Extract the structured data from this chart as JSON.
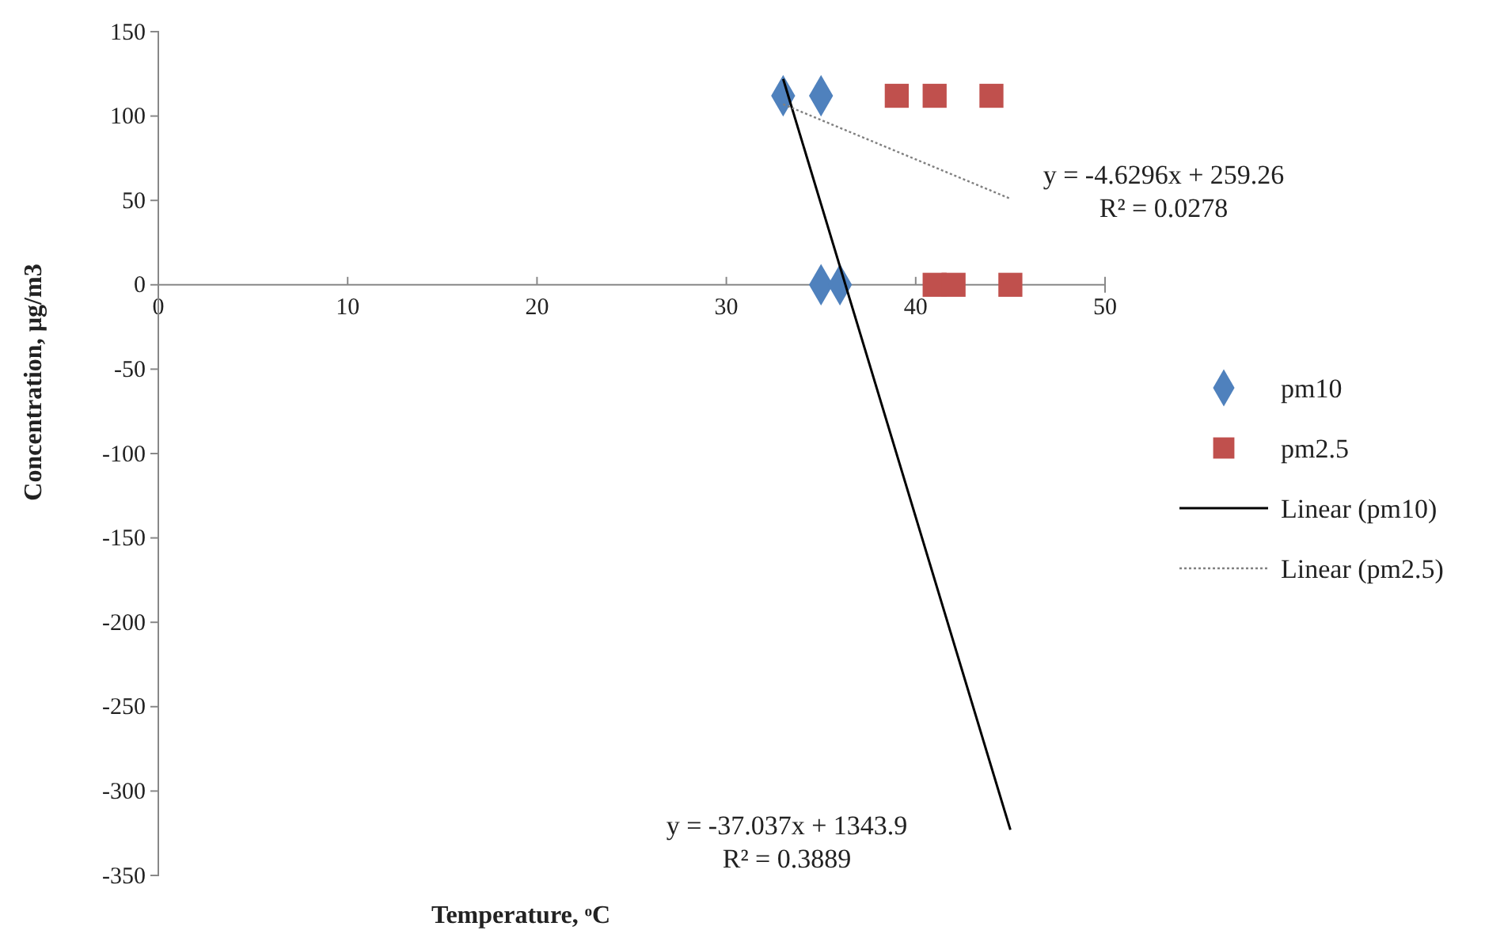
{
  "chart_data": {
    "type": "scatter",
    "xlabel": "Temperature, ᵒC",
    "ylabel": "Concentration, µg/m3",
    "xlim": [
      0,
      50
    ],
    "xticks": [
      0,
      10,
      20,
      30,
      40,
      50
    ],
    "ylim": [
      -350,
      150
    ],
    "yticks": [
      -350,
      -300,
      -250,
      -200,
      -150,
      -100,
      -50,
      0,
      50,
      100,
      150
    ],
    "grid": false,
    "legend": "right",
    "series": [
      {
        "name": "pm10",
        "type": "scatter",
        "marker": "diamond",
        "color": "#4f81bd",
        "x": [
          33,
          35,
          35,
          36
        ],
        "values": [
          112,
          112,
          0,
          0
        ]
      },
      {
        "name": "pm2.5",
        "type": "scatter",
        "marker": "square",
        "color": "#c0504d",
        "x": [
          39,
          41,
          44,
          41,
          42,
          45
        ],
        "values": [
          112,
          112,
          112,
          0,
          0,
          0
        ]
      },
      {
        "name": "Linear (pm10)",
        "type": "line",
        "marker": "none",
        "line_style": "solid",
        "color": "#000000",
        "x": [
          33,
          45
        ],
        "values": [
          122,
          -323
        ]
      },
      {
        "name": "Linear (pm2.5)",
        "type": "line",
        "marker": "none",
        "line_style": "dotted",
        "color": "#808080",
        "x": [
          33,
          45
        ],
        "values": [
          107,
          51
        ]
      }
    ],
    "annotations": [
      "y = -4.6296x + 259.26",
      "R² = 0.0278",
      "y = -37.037x + 1343.9",
      "R² = 0.3889"
    ]
  }
}
